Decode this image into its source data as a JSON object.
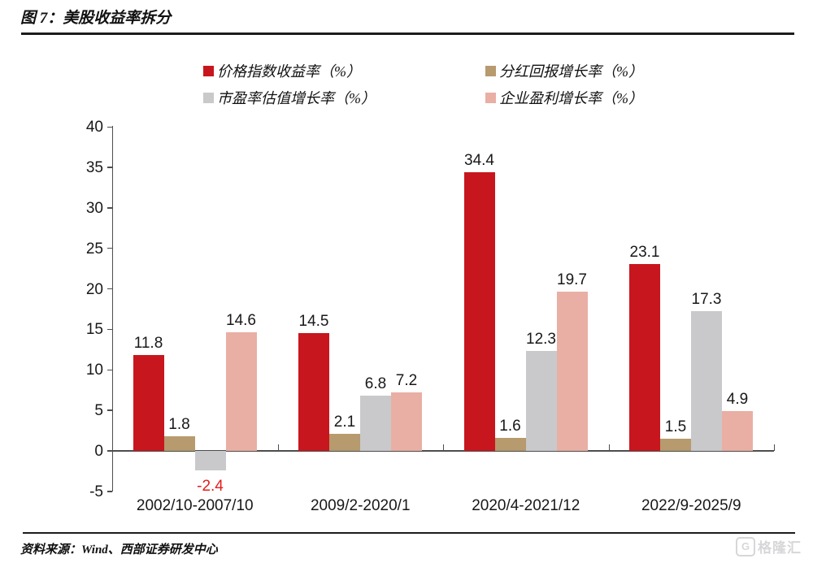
{
  "header": {
    "title": "图 7：美股收益率拆分"
  },
  "chart_data": {
    "type": "bar",
    "title": "图 7：美股收益率拆分",
    "categories": [
      "2002/10-2007/10",
      "2009/2-2020/1",
      "2020/4-2021/12",
      "2022/9-2025/9"
    ],
    "series": [
      {
        "name": "价格指数收益率（%）",
        "color": "#c8161e",
        "values": [
          11.8,
          14.5,
          34.4,
          23.1
        ]
      },
      {
        "name": "分红回报增长率（%）",
        "color": "#b79a6d",
        "values": [
          1.8,
          2.1,
          1.6,
          1.5
        ]
      },
      {
        "name": "市盈率估值增长率（%）",
        "color": "#c9c9cb",
        "values": [
          -2.4,
          6.8,
          12.3,
          17.3
        ]
      },
      {
        "name": "企业盈利增长率（%）",
        "color": "#e9afa4",
        "values": [
          14.6,
          7.2,
          19.7,
          4.9
        ]
      }
    ],
    "y_ticks": [
      40,
      35,
      30,
      25,
      20,
      15,
      10,
      5,
      0,
      -5
    ],
    "ylim": [
      -5,
      40
    ],
    "grid": false,
    "legend_position": "top",
    "value_labels_shown": true,
    "negative_label_color": "#e31e1c",
    "label_color": "#181818"
  },
  "footer": {
    "source": "资料来源：Wind、西部证券研发中心"
  },
  "watermark": {
    "icon": "G",
    "text": "格隆汇"
  }
}
